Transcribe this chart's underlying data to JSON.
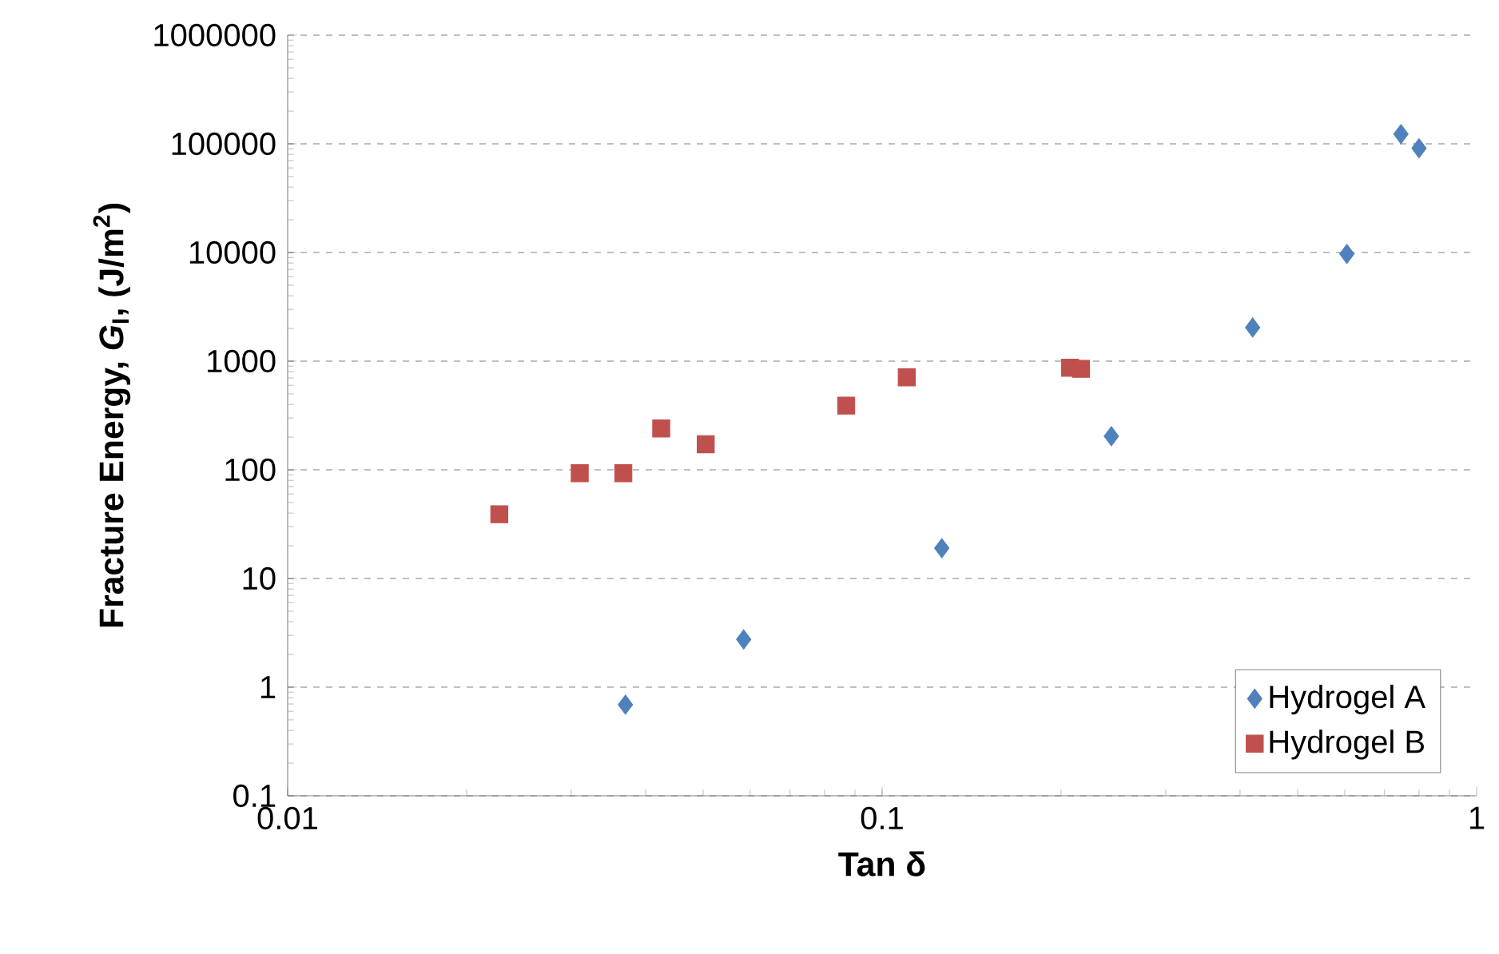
{
  "chart_data": {
    "type": "scatter",
    "xlabel": "Tan δ",
    "ylabel": "Fracture Energy, *G*$_{I}$, (J/m$^{2}$)",
    "log": "xy",
    "xlim": [
      0.01,
      1
    ],
    "ylim": [
      0.1,
      1000000
    ],
    "xticks": [
      0.01,
      0.1,
      1
    ],
    "yticks": [
      0.1,
      1,
      10,
      100,
      1000,
      10000,
      100000,
      1000000
    ],
    "grid": "y",
    "legend": "bottom right",
    "series": [
      {
        "name": "Hydrogel A",
        "color": "#4f81bd",
        "marker": "diamond",
        "x": [
          0.037,
          0.0585,
          0.126,
          0.243,
          0.42,
          0.605,
          0.746,
          0.8
        ],
        "values": [
          0.69,
          2.75,
          19,
          204,
          2040,
          9700,
          123000,
          91000
        ]
      },
      {
        "name": "Hydrogel B",
        "color": "#c0504d",
        "marker": "square",
        "x": [
          0.0227,
          0.031,
          0.0367,
          0.0425,
          0.0505,
          0.087,
          0.11,
          0.207,
          0.216
        ],
        "values": [
          39,
          93,
          93,
          240,
          172,
          390,
          710,
          870,
          850
        ]
      }
    ]
  }
}
